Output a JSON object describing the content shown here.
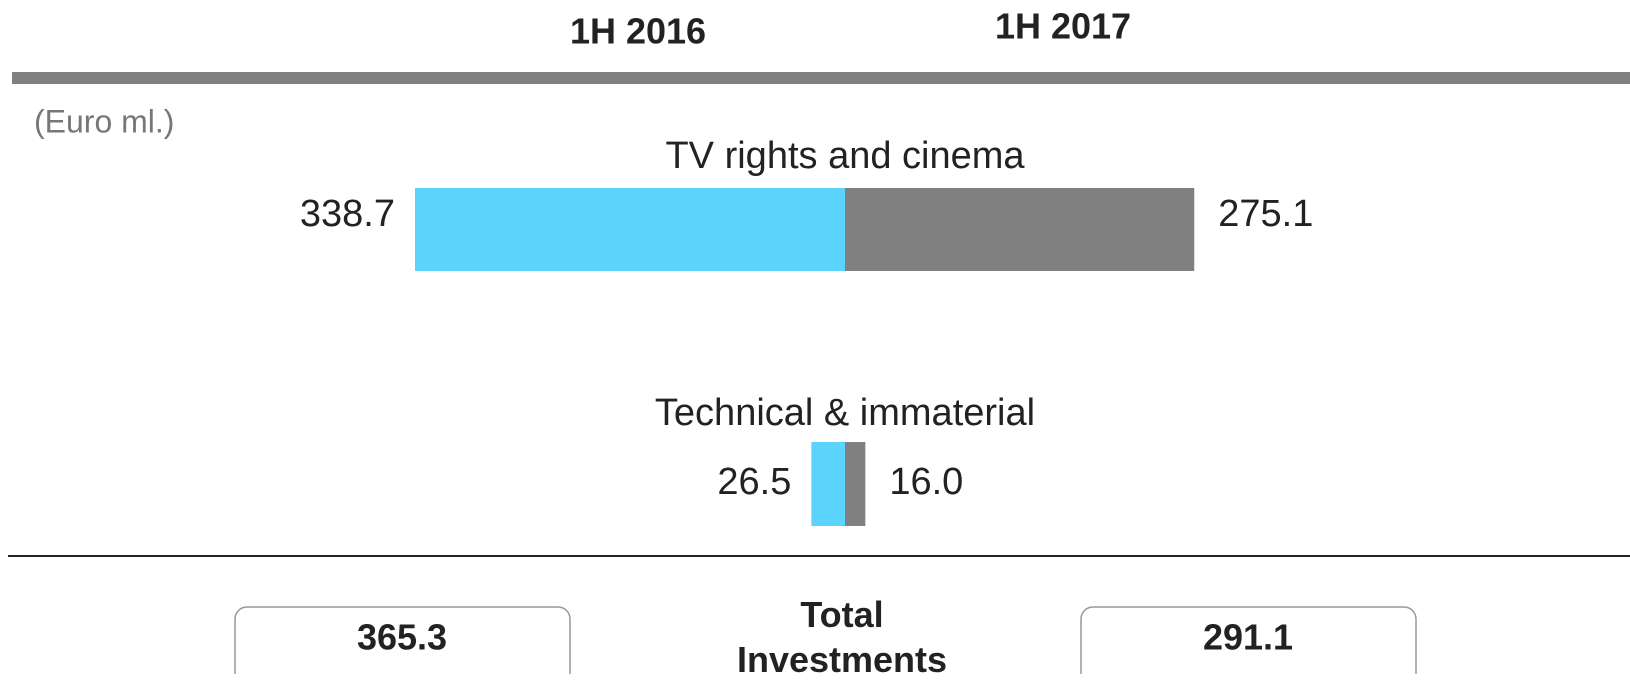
{
  "chart_data": {
    "type": "butterfly-bar",
    "unit": "(Euro ml.)",
    "categories": [
      "TV rights and cinema",
      "Technical & immaterial"
    ],
    "series": [
      {
        "name": "1H 2016",
        "color": "#5bd3fd",
        "values": [
          338.7,
          26.5
        ]
      },
      {
        "name": "1H 2017",
        "color": "#808080",
        "values": [
          275.1,
          16.0
        ],
        "value_labels": [
          "275.1",
          "16.0"
        ]
      }
    ],
    "total_label": "Total Investments",
    "totals": [
      365.3,
      291.1
    ]
  }
}
